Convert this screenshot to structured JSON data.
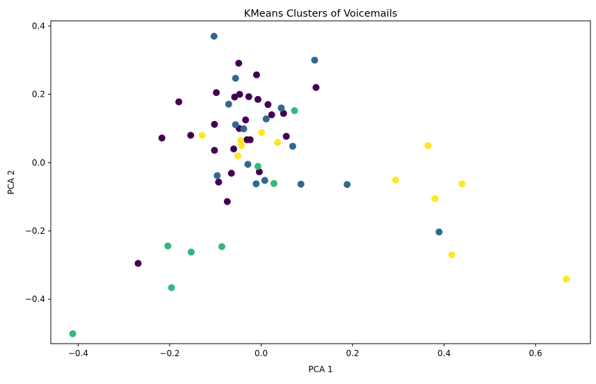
{
  "chart_data": {
    "type": "scatter",
    "title": "KMeans Clusters of Voicemails",
    "xlabel": "PCA 1",
    "ylabel": "PCA 2",
    "xlim": [
      -0.46,
      0.72
    ],
    "ylim": [
      -0.53,
      0.415
    ],
    "xticks": [
      -0.4,
      -0.2,
      0.0,
      0.2,
      0.4,
      0.6
    ],
    "xtick_labels": [
      "−0.4",
      "−0.2",
      "0.0",
      "0.2",
      "0.4",
      "0.6"
    ],
    "yticks": [
      -0.4,
      -0.2,
      0.0,
      0.2,
      0.4
    ],
    "ytick_labels": [
      "−0.4",
      "−0.2",
      "0.0",
      "0.2",
      "0.4"
    ],
    "grid": false,
    "legend": false,
    "colors": {
      "cluster_0": "#440154",
      "cluster_1": "#31688e",
      "cluster_2": "#35b779",
      "cluster_3": "#fde725"
    },
    "points": [
      {
        "x": -0.049,
        "y": 0.291,
        "cluster": 0
      },
      {
        "x": -0.01,
        "y": 0.257,
        "cluster": 0
      },
      {
        "x": 0.12,
        "y": 0.22,
        "cluster": 0
      },
      {
        "x": -0.098,
        "y": 0.205,
        "cluster": 0
      },
      {
        "x": -0.047,
        "y": 0.2,
        "cluster": 0
      },
      {
        "x": -0.027,
        "y": 0.193,
        "cluster": 0
      },
      {
        "x": -0.058,
        "y": 0.192,
        "cluster": 0
      },
      {
        "x": -0.007,
        "y": 0.185,
        "cluster": 0
      },
      {
        "x": -0.18,
        "y": 0.178,
        "cluster": 0
      },
      {
        "x": 0.015,
        "y": 0.17,
        "cluster": 0
      },
      {
        "x": 0.049,
        "y": 0.144,
        "cluster": 0
      },
      {
        "x": 0.023,
        "y": 0.14,
        "cluster": 0
      },
      {
        "x": -0.034,
        "y": 0.125,
        "cluster": 0
      },
      {
        "x": -0.102,
        "y": 0.112,
        "cluster": 0
      },
      {
        "x": -0.048,
        "y": 0.1,
        "cluster": 0
      },
      {
        "x": -0.154,
        "y": 0.08,
        "cluster": 0
      },
      {
        "x": 0.055,
        "y": 0.077,
        "cluster": 0
      },
      {
        "x": -0.217,
        "y": 0.072,
        "cluster": 0
      },
      {
        "x": -0.031,
        "y": 0.067,
        "cluster": 0
      },
      {
        "x": -0.024,
        "y": 0.067,
        "cluster": 0
      },
      {
        "x": -0.06,
        "y": 0.04,
        "cluster": 0
      },
      {
        "x": -0.102,
        "y": 0.036,
        "cluster": 0
      },
      {
        "x": -0.065,
        "y": -0.031,
        "cluster": 0
      },
      {
        "x": -0.004,
        "y": -0.027,
        "cluster": 0
      },
      {
        "x": -0.093,
        "y": -0.057,
        "cluster": 0
      },
      {
        "x": -0.074,
        "y": -0.114,
        "cluster": 0
      },
      {
        "x": -0.269,
        "y": -0.295,
        "cluster": 0
      },
      {
        "x": -0.103,
        "y": 0.37,
        "cluster": 1
      },
      {
        "x": 0.117,
        "y": 0.3,
        "cluster": 1
      },
      {
        "x": -0.056,
        "y": 0.247,
        "cluster": 1
      },
      {
        "x": -0.071,
        "y": 0.171,
        "cluster": 1
      },
      {
        "x": 0.044,
        "y": 0.16,
        "cluster": 1
      },
      {
        "x": 0.011,
        "y": 0.128,
        "cluster": 1
      },
      {
        "x": -0.056,
        "y": 0.111,
        "cluster": 1
      },
      {
        "x": -0.038,
        "y": 0.099,
        "cluster": 1
      },
      {
        "x": 0.069,
        "y": 0.048,
        "cluster": 1
      },
      {
        "x": -0.029,
        "y": -0.005,
        "cluster": 1
      },
      {
        "x": -0.096,
        "y": -0.038,
        "cluster": 1
      },
      {
        "x": 0.008,
        "y": -0.052,
        "cluster": 1
      },
      {
        "x": -0.011,
        "y": -0.062,
        "cluster": 1
      },
      {
        "x": 0.087,
        "y": -0.063,
        "cluster": 1
      },
      {
        "x": 0.188,
        "y": -0.064,
        "cluster": 1
      },
      {
        "x": 0.389,
        "y": -0.203,
        "cluster": 1
      },
      {
        "x": 0.073,
        "y": 0.152,
        "cluster": 2
      },
      {
        "x": -0.007,
        "y": -0.011,
        "cluster": 2
      },
      {
        "x": 0.028,
        "y": -0.061,
        "cluster": 2
      },
      {
        "x": -0.204,
        "y": -0.244,
        "cluster": 2
      },
      {
        "x": -0.086,
        "y": -0.246,
        "cluster": 2
      },
      {
        "x": -0.153,
        "y": -0.262,
        "cluster": 2
      },
      {
        "x": -0.196,
        "y": -0.366,
        "cluster": 2
      },
      {
        "x": -0.412,
        "y": -0.501,
        "cluster": 2
      },
      {
        "x": -0.129,
        "y": 0.08,
        "cluster": 3
      },
      {
        "x": 0.001,
        "y": 0.088,
        "cluster": 3
      },
      {
        "x": -0.045,
        "y": 0.065,
        "cluster": 3
      },
      {
        "x": 0.036,
        "y": 0.059,
        "cluster": 3
      },
      {
        "x": -0.043,
        "y": 0.05,
        "cluster": 3
      },
      {
        "x": 0.365,
        "y": 0.05,
        "cluster": 3
      },
      {
        "x": -0.051,
        "y": 0.02,
        "cluster": 3
      },
      {
        "x": 0.294,
        "y": -0.051,
        "cluster": 3
      },
      {
        "x": 0.439,
        "y": -0.062,
        "cluster": 3
      },
      {
        "x": 0.38,
        "y": -0.105,
        "cluster": 3
      },
      {
        "x": 0.417,
        "y": -0.27,
        "cluster": 3
      },
      {
        "x": 0.667,
        "y": -0.341,
        "cluster": 3
      }
    ]
  }
}
